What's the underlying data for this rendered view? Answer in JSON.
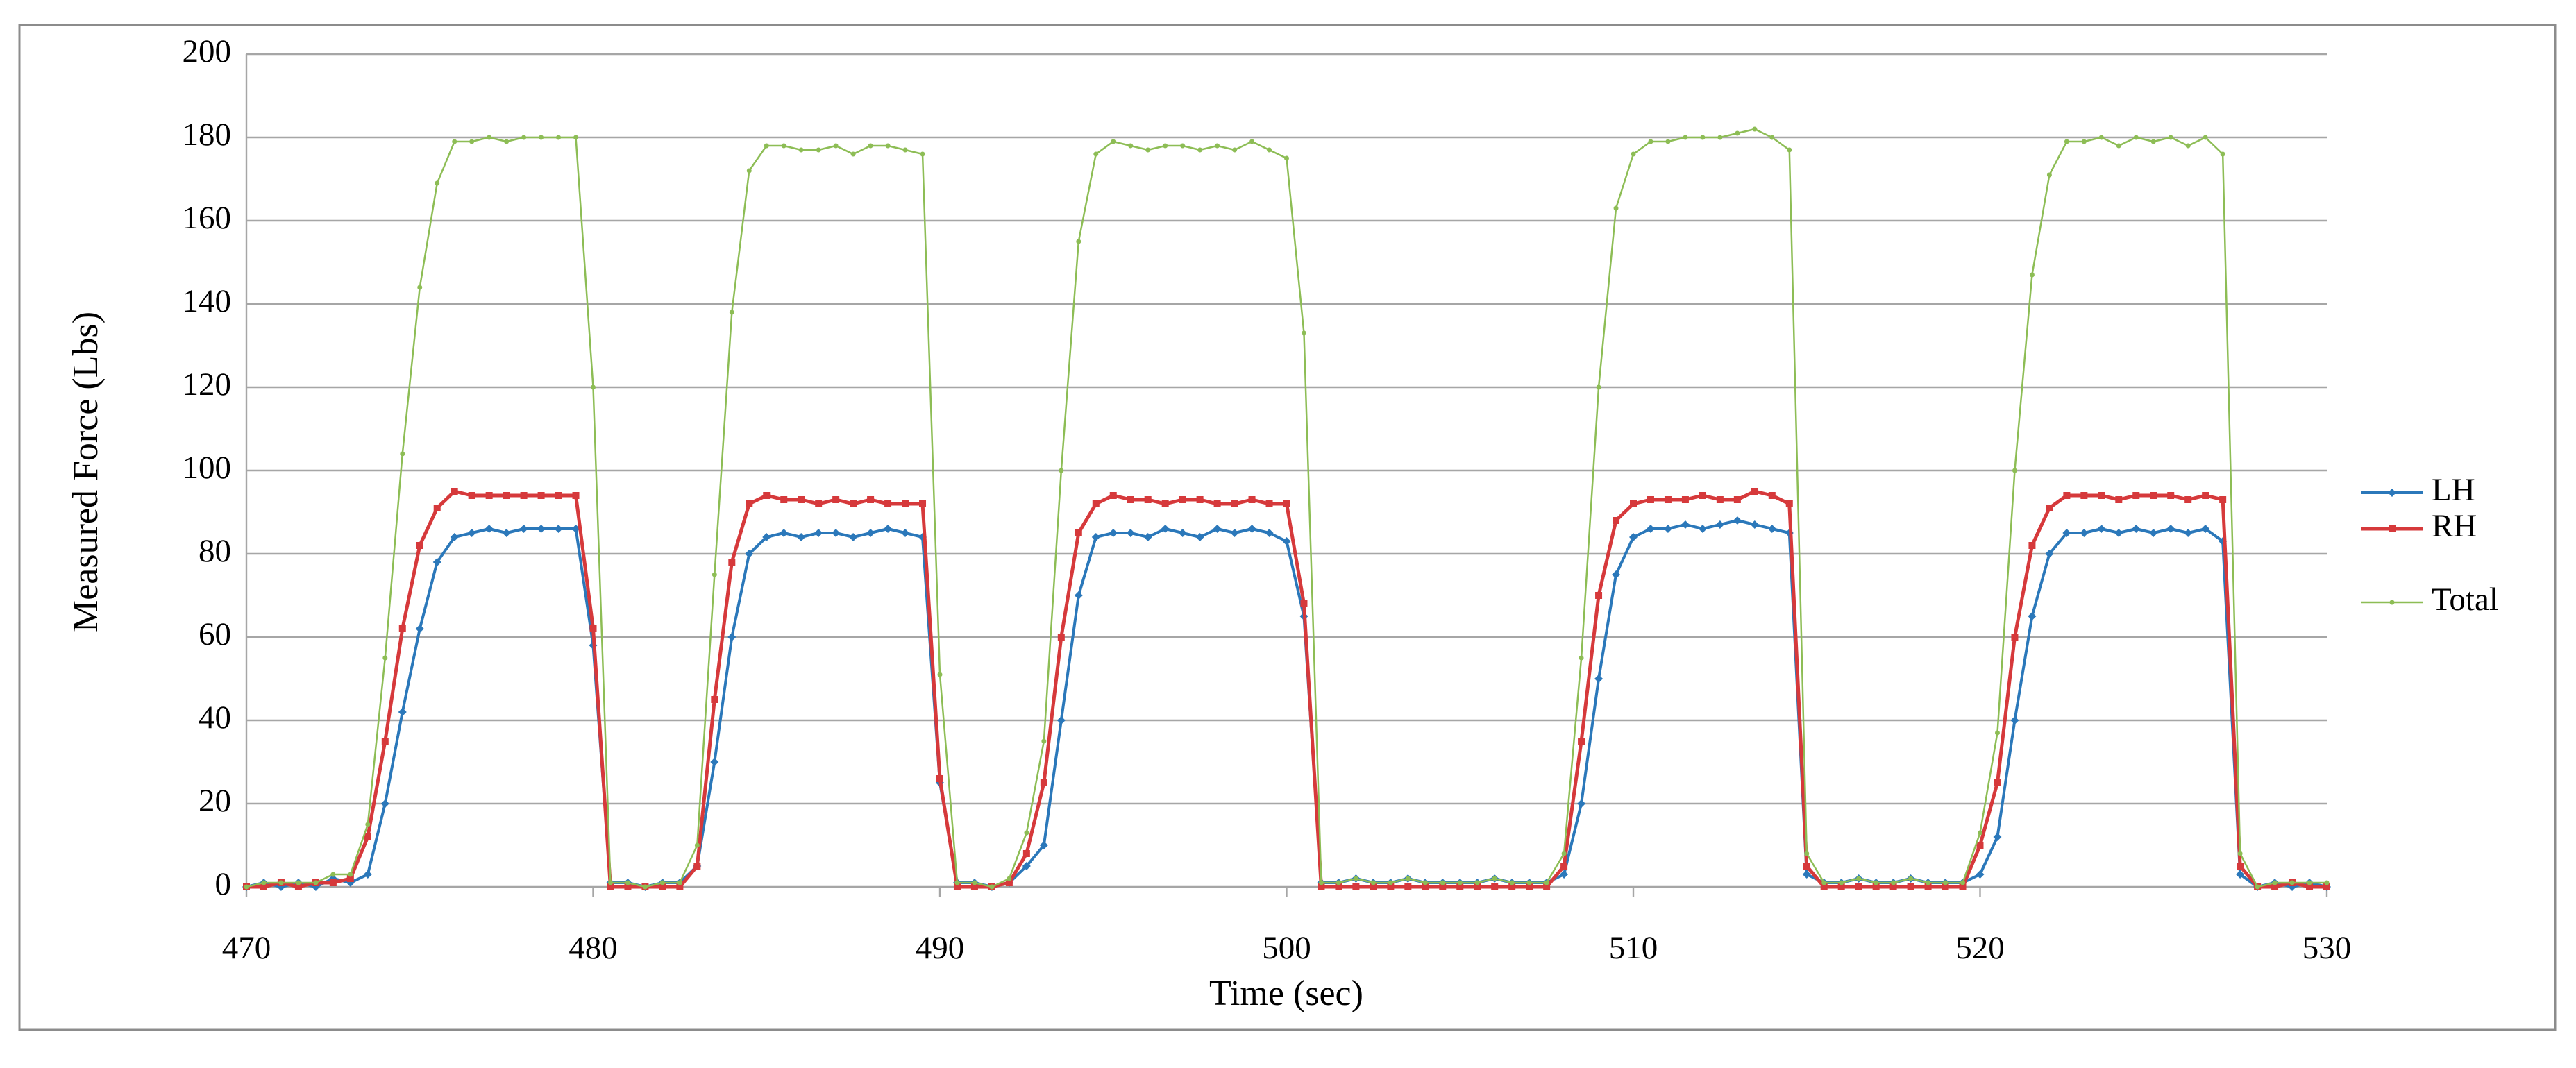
{
  "chart_data": {
    "type": "line",
    "y_label": "Measured Force (Lbs)",
    "x_label": "Time (sec)",
    "xlim": [
      470,
      530
    ],
    "xticks": [
      470,
      480,
      490,
      500,
      510,
      520,
      530
    ],
    "ylim": [
      0,
      200
    ],
    "yticks": [
      0,
      20,
      40,
      60,
      80,
      100,
      120,
      140,
      160,
      180,
      200
    ],
    "grid": true,
    "legend": "right",
    "x": [
      470,
      470.5,
      471,
      471.5,
      472,
      472.5,
      473,
      473.5,
      474,
      474.5,
      475,
      475.5,
      476,
      476.5,
      477,
      477.5,
      478,
      478.5,
      479,
      479.5,
      480,
      480.5,
      481,
      481.5,
      482,
      482.5,
      483,
      483.5,
      484,
      484.5,
      485,
      485.5,
      486,
      486.5,
      487,
      487.5,
      488,
      488.5,
      489,
      489.5,
      490,
      490.5,
      491,
      491.5,
      492,
      492.5,
      493,
      493.5,
      494,
      494.5,
      495,
      495.5,
      496,
      496.5,
      497,
      497.5,
      498,
      498.5,
      499,
      499.5,
      500,
      500.5,
      501,
      501.5,
      502,
      502.5,
      503,
      503.5,
      504,
      504.5,
      505,
      505.5,
      506,
      506.5,
      507,
      507.5,
      508,
      508.5,
      509,
      509.5,
      510,
      510.5,
      511,
      511.5,
      512,
      512.5,
      513,
      513.5,
      514,
      514.5,
      515,
      515.5,
      516,
      516.5,
      517,
      517.5,
      518,
      518.5,
      519,
      519.5,
      520,
      520.5,
      521,
      521.5,
      522,
      522.5,
      523,
      523.5,
      524,
      524.5,
      525,
      525.5,
      526,
      526.5,
      527,
      527.5,
      528,
      528.5,
      529,
      529.5,
      530
    ],
    "series": [
      {
        "name": "LH",
        "color": "#2b78ba",
        "marker": "diamond",
        "width": 4,
        "values": [
          0,
          1,
          0,
          1,
          0,
          2,
          1,
          3,
          20,
          42,
          62,
          78,
          84,
          85,
          86,
          85,
          86,
          86,
          86,
          86,
          58,
          1,
          1,
          0,
          1,
          1,
          5,
          30,
          60,
          80,
          84,
          85,
          84,
          85,
          85,
          84,
          85,
          86,
          85,
          84,
          25,
          1,
          1,
          0,
          1,
          5,
          10,
          40,
          70,
          84,
          85,
          85,
          84,
          86,
          85,
          84,
          86,
          85,
          86,
          85,
          83,
          65,
          1,
          1,
          2,
          1,
          1,
          2,
          1,
          1,
          1,
          1,
          2,
          1,
          1,
          1,
          3,
          20,
          50,
          75,
          84,
          86,
          86,
          87,
          86,
          87,
          88,
          87,
          86,
          85,
          3,
          1,
          1,
          2,
          1,
          1,
          2,
          1,
          1,
          1,
          3,
          12,
          40,
          65,
          80,
          85,
          85,
          86,
          85,
          86,
          85,
          86,
          85,
          86,
          83,
          3,
          0,
          1,
          0,
          1,
          0
        ]
      },
      {
        "name": "RH",
        "color": "#d6393b",
        "marker": "square",
        "width": 5,
        "values": [
          0,
          0,
          1,
          0,
          1,
          1,
          2,
          12,
          35,
          62,
          82,
          91,
          95,
          94,
          94,
          94,
          94,
          94,
          94,
          94,
          62,
          0,
          0,
          0,
          0,
          0,
          5,
          45,
          78,
          92,
          94,
          93,
          93,
          92,
          93,
          92,
          93,
          92,
          92,
          92,
          26,
          0,
          0,
          0,
          1,
          8,
          25,
          60,
          85,
          92,
          94,
          93,
          93,
          92,
          93,
          93,
          92,
          92,
          93,
          92,
          92,
          68,
          0,
          0,
          0,
          0,
          0,
          0,
          0,
          0,
          0,
          0,
          0,
          0,
          0,
          0,
          5,
          35,
          70,
          88,
          92,
          93,
          93,
          93,
          94,
          93,
          93,
          95,
          94,
          92,
          5,
          0,
          0,
          0,
          0,
          0,
          0,
          0,
          0,
          0,
          10,
          25,
          60,
          82,
          91,
          94,
          94,
          94,
          93,
          94,
          94,
          94,
          93,
          94,
          93,
          5,
          0,
          0,
          1,
          0,
          0
        ]
      },
      {
        "name": "Total",
        "color": "#8dbd55",
        "marker": "dot",
        "width": 2.5,
        "values": [
          0,
          1,
          1,
          1,
          1,
          3,
          3,
          15,
          55,
          104,
          144,
          169,
          179,
          179,
          180,
          179,
          180,
          180,
          180,
          180,
          120,
          1,
          1,
          0,
          1,
          1,
          10,
          75,
          138,
          172,
          178,
          178,
          177,
          177,
          178,
          176,
          178,
          178,
          177,
          176,
          51,
          1,
          1,
          0,
          2,
          13,
          35,
          100,
          155,
          176,
          179,
          178,
          177,
          178,
          178,
          177,
          178,
          177,
          179,
          177,
          175,
          133,
          1,
          1,
          2,
          1,
          1,
          2,
          1,
          1,
          1,
          1,
          2,
          1,
          1,
          1,
          8,
          55,
          120,
          163,
          176,
          179,
          179,
          180,
          180,
          180,
          181,
          182,
          180,
          177,
          8,
          1,
          1,
          2,
          1,
          1,
          2,
          1,
          1,
          1,
          13,
          37,
          100,
          147,
          171,
          179,
          179,
          180,
          178,
          180,
          179,
          180,
          178,
          180,
          176,
          8,
          0,
          1,
          1,
          1,
          1
        ]
      }
    ]
  }
}
